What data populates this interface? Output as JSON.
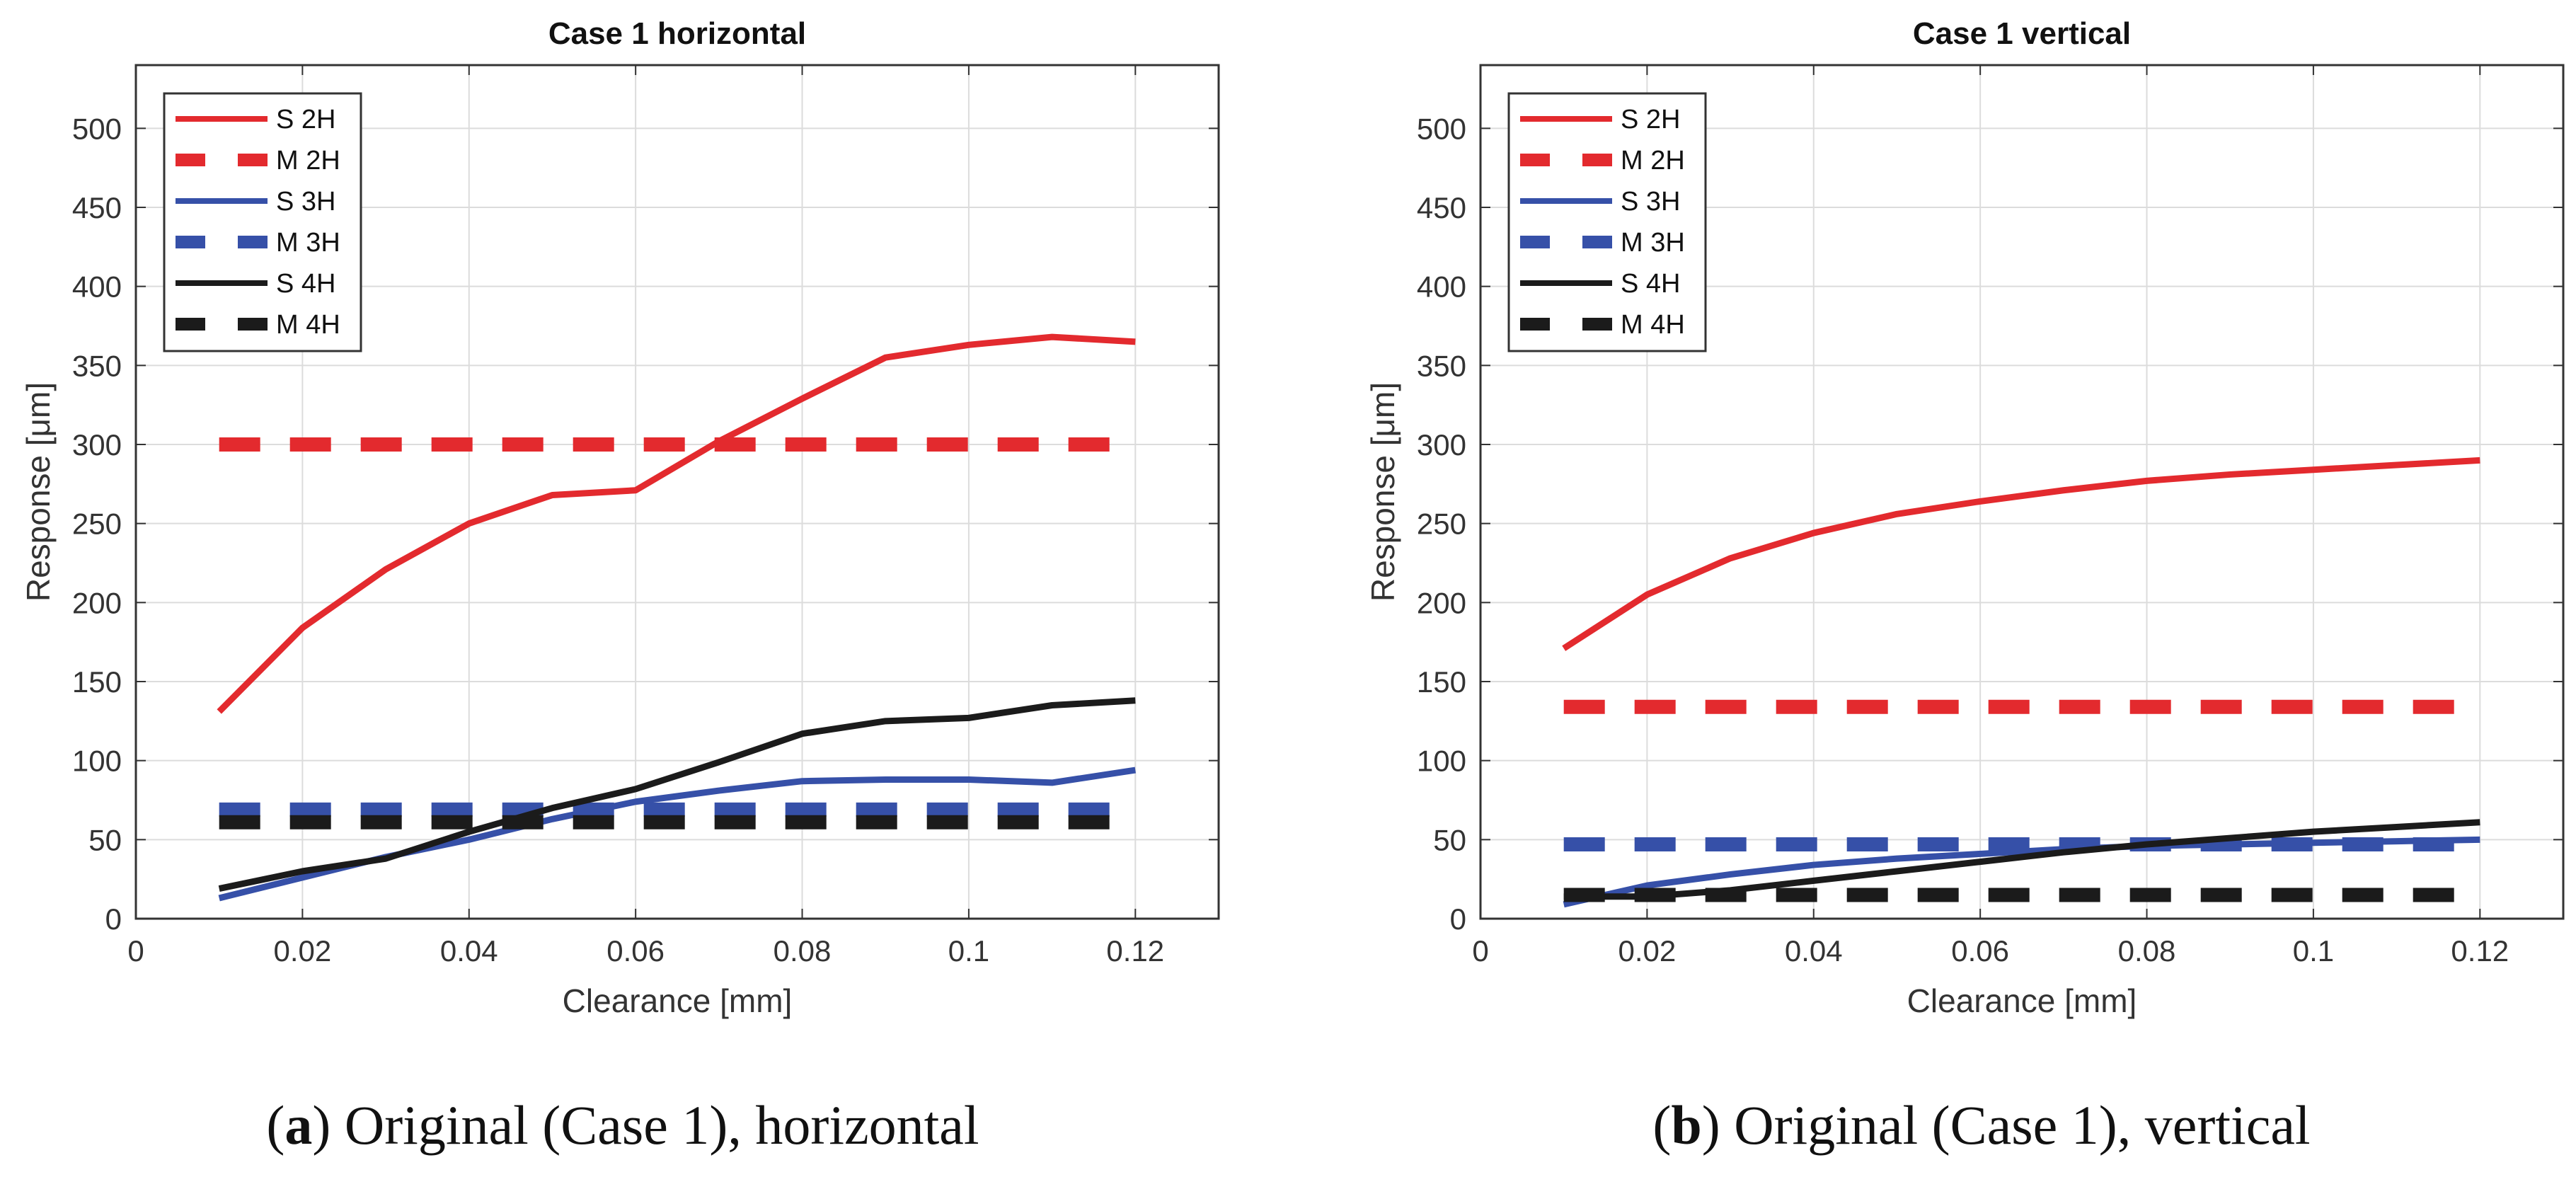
{
  "colors": {
    "red": "#e32a2e",
    "blue": "#3650a8",
    "black": "#1b1b1b",
    "grid": "#dcdcdc"
  },
  "captions": [
    {
      "letter": "a",
      "text": " Original (Case 1), horizontal"
    },
    {
      "letter": "b",
      "text": " Original (Case 1), vertical"
    }
  ],
  "chart_data": [
    {
      "type": "line",
      "title": "Case 1 horizontal",
      "xlabel": "Clearance [mm]",
      "ylabel": "Response [μm]",
      "xlim": [
        0,
        0.13
      ],
      "ylim": [
        0,
        540
      ],
      "xticks": [
        0,
        0.02,
        0.04,
        0.06,
        0.08,
        0.1,
        0.12
      ],
      "xtick_labels": [
        "0",
        "0.02",
        "0.04",
        "0.06",
        "0.08",
        "0.1",
        "0.12"
      ],
      "yticks": [
        0,
        50,
        100,
        150,
        200,
        250,
        300,
        350,
        400,
        450,
        500
      ],
      "grid": true,
      "legend_position": "top-left",
      "x": [
        0.01,
        0.02,
        0.03,
        0.04,
        0.05,
        0.06,
        0.07,
        0.08,
        0.09,
        0.1,
        0.11,
        0.12
      ],
      "series": [
        {
          "name": "S 2H",
          "color": "red",
          "style": "solid",
          "values": [
            131,
            184,
            221,
            250,
            268,
            271,
            302,
            329,
            355,
            363,
            368,
            365
          ]
        },
        {
          "name": "M 2H",
          "color": "red",
          "style": "dashed",
          "values": [
            300,
            300,
            300,
            300,
            300,
            300,
            300,
            300,
            300,
            300,
            300,
            300
          ]
        },
        {
          "name": "S 3H",
          "color": "blue",
          "style": "solid",
          "values": [
            13,
            26,
            39,
            50,
            63,
            74,
            81,
            87,
            88,
            88,
            86,
            94
          ]
        },
        {
          "name": "M 3H",
          "color": "blue",
          "style": "dashed",
          "values": [
            69,
            69,
            69,
            69,
            69,
            69,
            69,
            69,
            69,
            69,
            69,
            69
          ]
        },
        {
          "name": "S 4H",
          "color": "black",
          "style": "solid",
          "values": [
            19,
            30,
            38,
            55,
            70,
            82,
            99,
            117,
            125,
            127,
            135,
            138
          ]
        },
        {
          "name": "M 4H",
          "color": "black",
          "style": "dashed",
          "values": [
            61,
            61,
            61,
            61,
            61,
            61,
            61,
            61,
            61,
            61,
            61,
            61
          ]
        }
      ]
    },
    {
      "type": "line",
      "title": "Case 1 vertical",
      "xlabel": "Clearance [mm]",
      "ylabel": "Response [μm]",
      "xlim": [
        0,
        0.13
      ],
      "ylim": [
        0,
        540
      ],
      "xticks": [
        0,
        0.02,
        0.04,
        0.06,
        0.08,
        0.1,
        0.12
      ],
      "xtick_labels": [
        "0",
        "0.02",
        "0.04",
        "0.06",
        "0.08",
        "0.1",
        "0.12"
      ],
      "yticks": [
        0,
        50,
        100,
        150,
        200,
        250,
        300,
        350,
        400,
        450,
        500
      ],
      "grid": true,
      "legend_position": "top-left",
      "x": [
        0.01,
        0.02,
        0.03,
        0.04,
        0.05,
        0.06,
        0.07,
        0.08,
        0.09,
        0.1,
        0.11,
        0.12
      ],
      "series": [
        {
          "name": "S 2H",
          "color": "red",
          "style": "solid",
          "values": [
            171,
            205,
            228,
            244,
            256,
            264,
            271,
            277,
            281,
            284,
            287,
            290
          ]
        },
        {
          "name": "M 2H",
          "color": "red",
          "style": "dashed",
          "values": [
            134,
            134,
            134,
            134,
            134,
            134,
            134,
            134,
            134,
            134,
            134,
            134
          ]
        },
        {
          "name": "S 3H",
          "color": "blue",
          "style": "solid",
          "values": [
            9,
            21,
            28,
            34,
            38,
            41,
            44,
            46,
            47,
            48,
            49,
            50
          ]
        },
        {
          "name": "M 3H",
          "color": "blue",
          "style": "dashed",
          "values": [
            47,
            47,
            47,
            47,
            47,
            47,
            47,
            47,
            47,
            47,
            47,
            47
          ]
        },
        {
          "name": "S 4H",
          "color": "black",
          "style": "solid",
          "values": [
            14,
            14,
            18,
            24,
            30,
            36,
            42,
            47,
            51,
            55,
            58,
            61
          ]
        },
        {
          "name": "M 4H",
          "color": "black",
          "style": "dashed",
          "values": [
            15,
            15,
            15,
            15,
            15,
            15,
            15,
            15,
            15,
            15,
            15,
            15
          ]
        }
      ]
    }
  ]
}
